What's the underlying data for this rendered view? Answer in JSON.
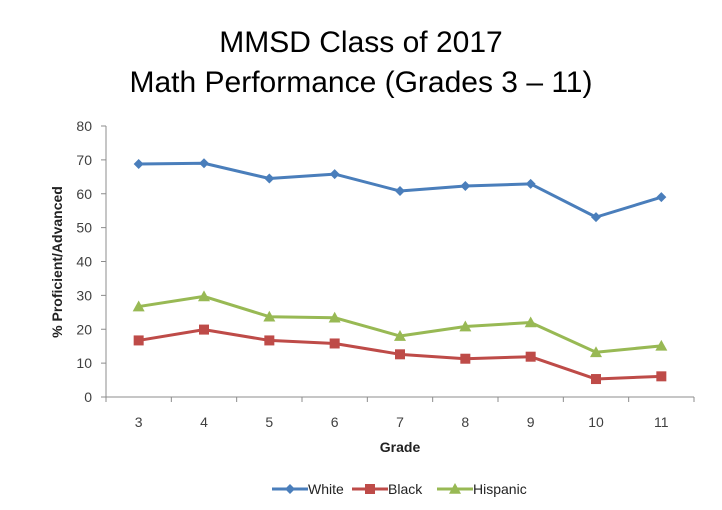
{
  "chart_data": {
    "type": "line",
    "title": [
      "MMSD Class of 2017",
      "Math Performance (Grades 3 – 11)"
    ],
    "xlabel": "Grade",
    "ylabel": "% Proficient/Advanced",
    "categories": [
      "3",
      "4",
      "5",
      "6",
      "7",
      "8",
      "9",
      "10",
      "11"
    ],
    "ylim": [
      0,
      80
    ],
    "yticks": [
      0,
      10,
      20,
      30,
      40,
      50,
      60,
      70,
      80
    ],
    "grid": false,
    "legend_position": "bottom",
    "series": [
      {
        "name": "White",
        "color": "#4a7ebb",
        "marker": "diamond",
        "values": [
          68.8,
          69.0,
          64.5,
          65.8,
          60.8,
          62.3,
          62.9,
          53.1,
          59.0
        ]
      },
      {
        "name": "Black",
        "color": "#be4b48",
        "marker": "square",
        "values": [
          16.7,
          19.9,
          16.7,
          15.8,
          12.6,
          11.3,
          11.9,
          5.3,
          6.1
        ]
      },
      {
        "name": "Hispanic",
        "color": "#98b954",
        "marker": "triangle",
        "values": [
          26.7,
          29.7,
          23.7,
          23.4,
          18.0,
          20.8,
          22.0,
          13.2,
          15.1
        ]
      }
    ]
  }
}
